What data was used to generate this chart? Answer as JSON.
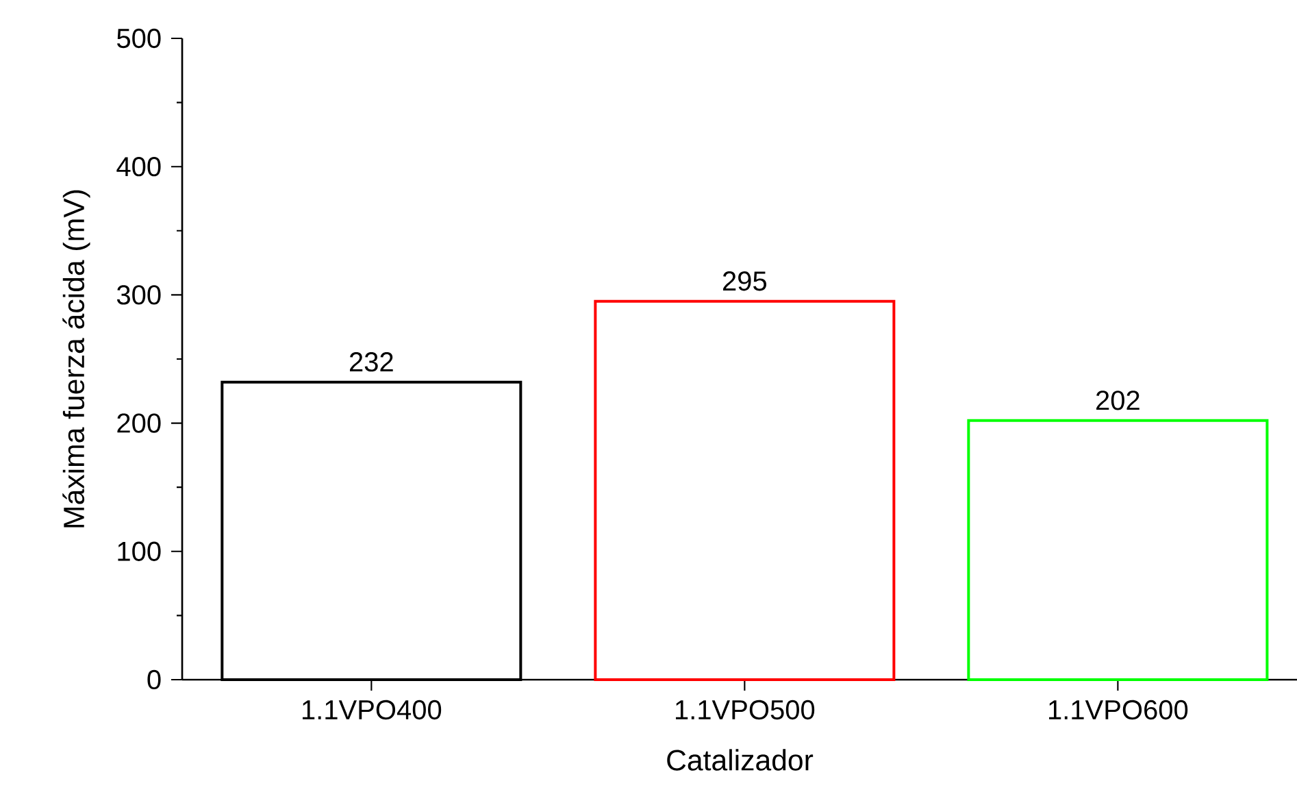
{
  "chart_data": {
    "type": "bar",
    "xlabel": "Catalizador",
    "ylabel": "Máxima fuerza ácida (mV)",
    "categories": [
      "1.1VPO400",
      "1.1VPO500",
      "1.1VPO600"
    ],
    "values": [
      232,
      295,
      202
    ],
    "colors": [
      "#000000",
      "#ff0000",
      "#00ff00"
    ],
    "ylim": [
      0,
      500
    ],
    "yticks": [
      0,
      100,
      200,
      300,
      400,
      500
    ],
    "data_labels": true
  }
}
